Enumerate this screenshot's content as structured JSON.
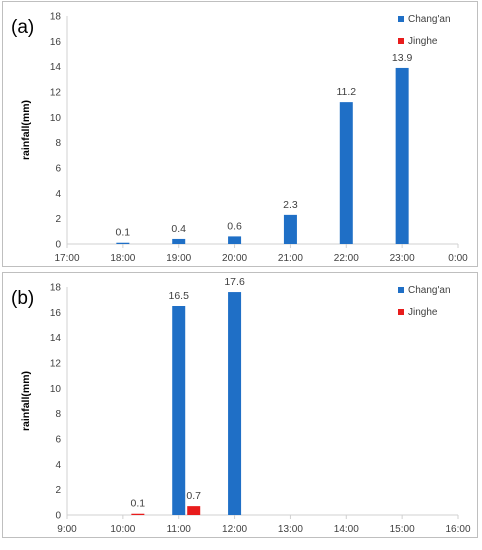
{
  "chart_data": [
    {
      "type": "bar",
      "panel_label": "(a)",
      "ylabel": "rainfall(mm)",
      "ylim": [
        0,
        18
      ],
      "yticks": [
        "0",
        "2",
        "4",
        "6",
        "8",
        "10",
        "12",
        "14",
        "16",
        "18"
      ],
      "categories": [
        "17:00",
        "18:00",
        "19:00",
        "20:00",
        "21:00",
        "22:00",
        "23:00",
        "0:00"
      ],
      "series": [
        {
          "name": "Chang'an",
          "color": "#1f6fc6",
          "values": [
            null,
            0.1,
            0.4,
            0.6,
            2.3,
            11.2,
            13.9,
            null
          ],
          "labels": [
            "",
            "0.1",
            "0.4",
            "0.6",
            "2.3",
            "11.2",
            "13.9",
            ""
          ]
        },
        {
          "name": "Jinghe",
          "color": "#e81c1c",
          "values": [
            null,
            null,
            null,
            null,
            null,
            null,
            null,
            null
          ],
          "labels": [
            "",
            "",
            "",
            "",
            "",
            "",
            "",
            ""
          ]
        }
      ],
      "legend": "top-right",
      "grid": false
    },
    {
      "type": "bar",
      "panel_label": "(b)",
      "ylabel": "rainfall(mm)",
      "ylim": [
        0,
        18
      ],
      "yticks": [
        "0",
        "2",
        "4",
        "6",
        "8",
        "10",
        "12",
        "14",
        "16",
        "18"
      ],
      "categories": [
        "9:00",
        "10:00",
        "11:00",
        "12:00",
        "13:00",
        "14:00",
        "15:00",
        "16:00"
      ],
      "series": [
        {
          "name": "Chang'an",
          "color": "#1f6fc6",
          "values": [
            null,
            null,
            16.5,
            17.6,
            null,
            null,
            null,
            null
          ],
          "labels": [
            "",
            "",
            "16.5",
            "17.6",
            "",
            "",
            "",
            ""
          ]
        },
        {
          "name": "Jinghe",
          "color": "#e81c1c",
          "values": [
            null,
            0.1,
            0.7,
            null,
            null,
            null,
            null,
            null
          ],
          "labels": [
            "",
            "0.1",
            "0.7",
            "",
            "",
            "",
            "",
            ""
          ]
        }
      ],
      "legend": "top-right",
      "grid": false
    }
  ]
}
